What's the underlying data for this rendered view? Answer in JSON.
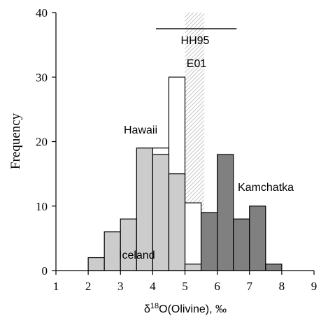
{
  "chart_data": {
    "type": "bar",
    "xlabel_prefix": "δ",
    "xlabel_sup": "18",
    "xlabel_rest": "O(Olivine), ‰",
    "ylabel": "Frequency",
    "xlim": [
      1,
      9
    ],
    "ylim": [
      0,
      40
    ],
    "xticks": [
      1,
      2,
      3,
      4,
      5,
      6,
      7,
      8,
      9
    ],
    "yticks": [
      0,
      10,
      20,
      30,
      40
    ],
    "bin_width": 0.5,
    "series": [
      {
        "name": "Iceland",
        "color": "#cccccc",
        "bins": [
          {
            "x0": 2.0,
            "value": 2
          },
          {
            "x0": 2.5,
            "value": 6
          },
          {
            "x0": 3.0,
            "value": 8
          },
          {
            "x0": 3.5,
            "value": 19
          },
          {
            "x0": 4.0,
            "value": 18
          },
          {
            "x0": 4.5,
            "value": 15
          },
          {
            "x0": 5.0,
            "value": 1
          }
        ]
      },
      {
        "name": "Hawaii",
        "color": "#ffffff",
        "bins": [
          {
            "x0": 4.0,
            "value": 19
          },
          {
            "x0": 4.5,
            "value": 30
          },
          {
            "x0": 5.0,
            "value": 10.5
          }
        ]
      },
      {
        "name": "Kamchatka",
        "color": "#808080",
        "bins": [
          {
            "x0": 5.5,
            "value": 9
          },
          {
            "x0": 6.0,
            "value": 18
          },
          {
            "x0": 6.5,
            "value": 8
          },
          {
            "x0": 7.0,
            "value": 10
          },
          {
            "x0": 7.5,
            "value": 1
          }
        ]
      }
    ],
    "annotations": {
      "hh95_label": "HH95",
      "hh95_range": [
        4.1,
        6.6
      ],
      "hh95_y": 37.5,
      "e01_label": "E01",
      "e01_band": [
        5.0,
        5.6
      ],
      "iceland_label": "Iceland",
      "hawaii_label": "Hawaii",
      "kamchatka_label": "Kamchatka"
    }
  }
}
